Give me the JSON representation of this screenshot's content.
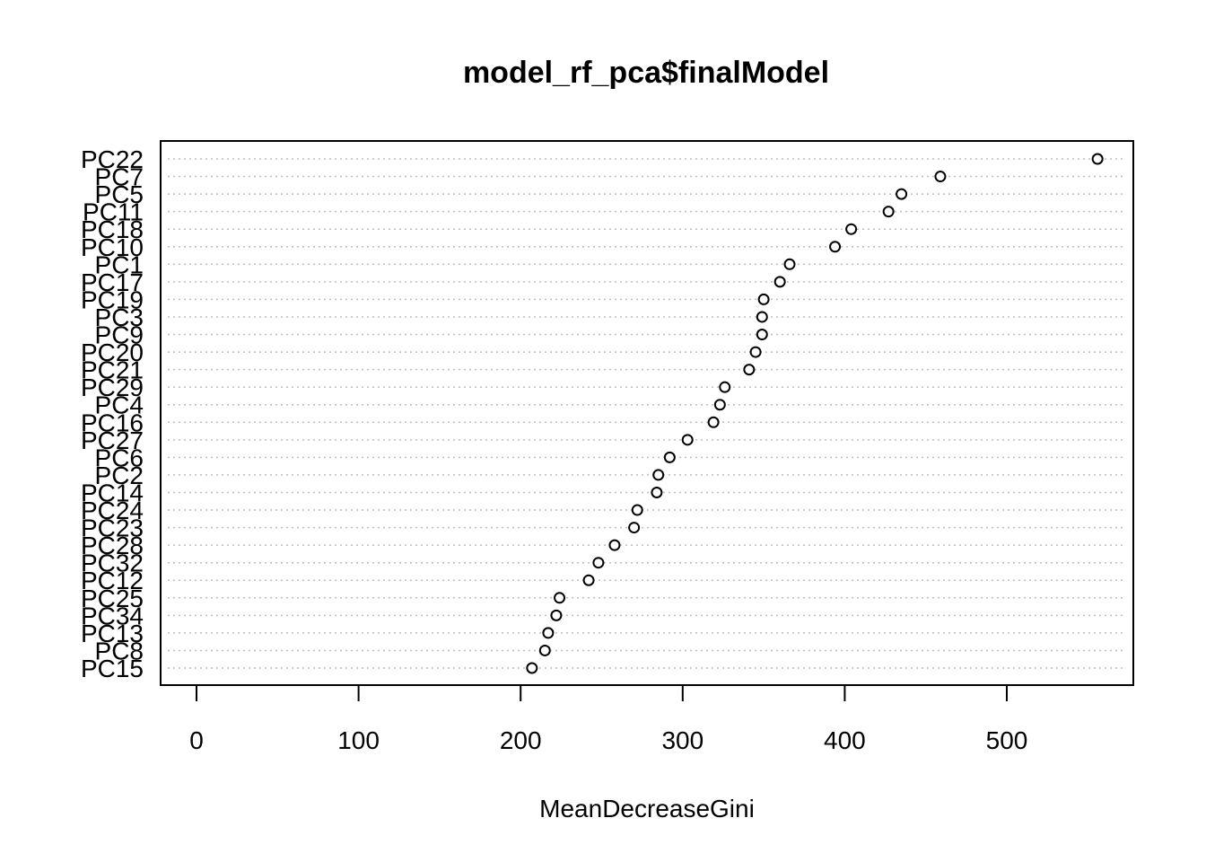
{
  "chart_data": {
    "type": "scatter",
    "title": "model_rf_pca$finalModel",
    "xlabel": "MeanDecreaseGini",
    "ylabel": "",
    "xlim": [
      -22,
      578
    ],
    "xticks": [
      0,
      100,
      200,
      300,
      400,
      500
    ],
    "grid": "dotted horizontal lines per category",
    "legend": "none",
    "categories": [
      "PC22",
      "PC7",
      "PC5",
      "PC11",
      "PC18",
      "PC10",
      "PC1",
      "PC17",
      "PC19",
      "PC3",
      "PC9",
      "PC20",
      "PC21",
      "PC29",
      "PC4",
      "PC16",
      "PC27",
      "PC6",
      "PC2",
      "PC14",
      "PC24",
      "PC23",
      "PC28",
      "PC32",
      "PC12",
      "PC25",
      "PC34",
      "PC13",
      "PC8",
      "PC15"
    ],
    "values": [
      556,
      459,
      435,
      427,
      404,
      394,
      366,
      360,
      350,
      349,
      349,
      345,
      341,
      326,
      323,
      319,
      303,
      292,
      285,
      284,
      272,
      270,
      258,
      248,
      242,
      224,
      222,
      217,
      215,
      207
    ]
  }
}
